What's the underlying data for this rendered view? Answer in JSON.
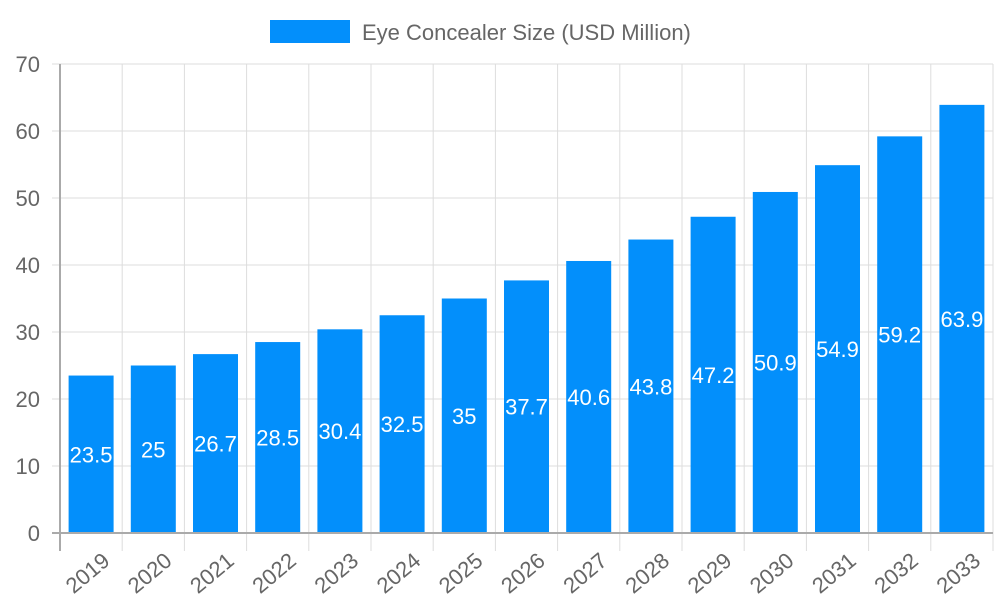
{
  "chart_data": {
    "type": "bar",
    "categories": [
      "2019",
      "2020",
      "2021",
      "2022",
      "2023",
      "2024",
      "2025",
      "2026",
      "2027",
      "2028",
      "2029",
      "2030",
      "2031",
      "2032",
      "2033"
    ],
    "series": [
      {
        "name": "Eye Concealer Size (USD Million)",
        "values": [
          23.5,
          25,
          26.7,
          28.5,
          30.4,
          32.5,
          35,
          37.7,
          40.6,
          43.8,
          47.2,
          50.9,
          54.9,
          59.2,
          63.9
        ]
      }
    ],
    "ylim": [
      0,
      70
    ],
    "yticks": [
      0,
      10,
      20,
      30,
      40,
      50,
      60,
      70
    ],
    "grid": true,
    "legend": "top-center",
    "data_labels": true,
    "colors": {
      "bar": "#038ffb",
      "label": "#ffffff",
      "grid": "#dddddd",
      "text": "#666666"
    }
  }
}
